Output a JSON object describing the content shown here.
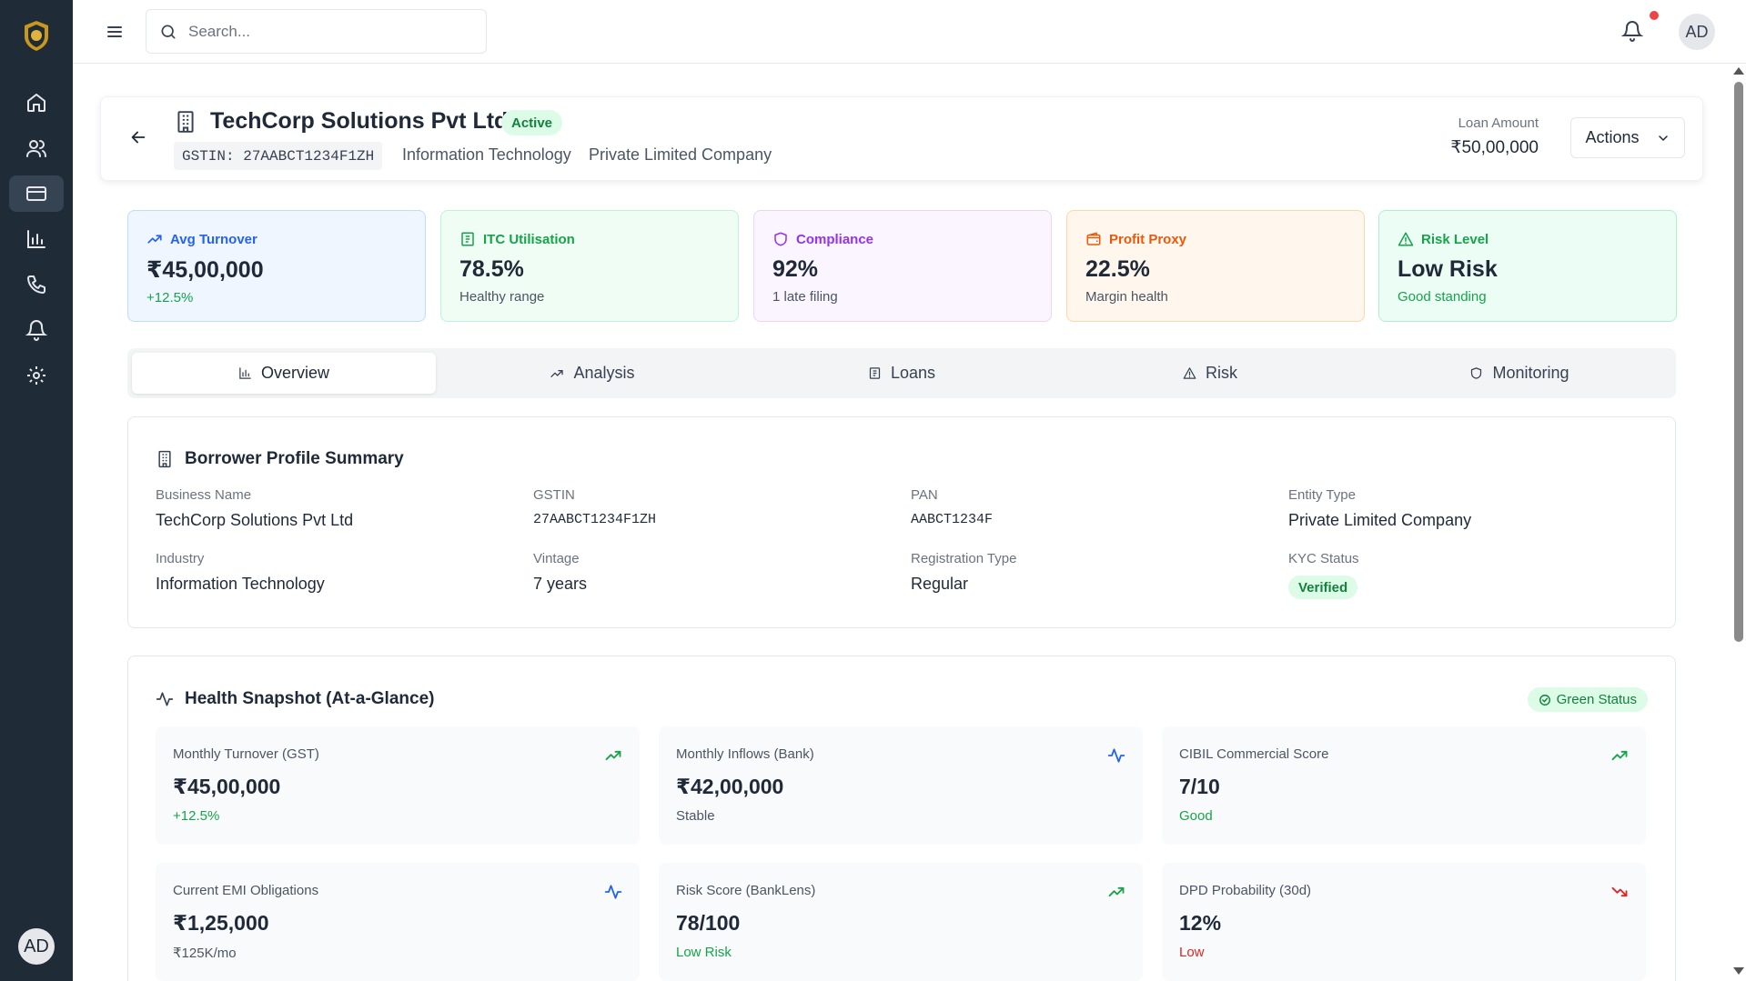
{
  "topbar": {
    "search_placeholder": "Search..."
  },
  "user": {
    "initials": "AD"
  },
  "sidebar": {
    "items": [
      {
        "icon": "home-icon"
      },
      {
        "icon": "users-icon"
      },
      {
        "icon": "credit-card-icon"
      },
      {
        "icon": "bar-chart-icon"
      },
      {
        "icon": "phone-icon"
      },
      {
        "icon": "bell-icon"
      },
      {
        "icon": "gear-icon"
      }
    ]
  },
  "header": {
    "title": "TechCorp Solutions Pvt Ltd",
    "status": "Active",
    "gstin": "GSTIN: 27AABCT1234F1ZH",
    "industry": "Information Technology",
    "entity": "Private Limited Company",
    "loan_label": "Loan Amount",
    "loan_value": "₹50,00,000",
    "actions_label": "Actions"
  },
  "kpis": [
    {
      "label": "Avg Turnover",
      "value": "₹45,00,000",
      "sub": "+12.5%",
      "color": "#2563eb"
    },
    {
      "label": "ITC Utilisation",
      "value": "78.5%",
      "sub": "Healthy range",
      "color": "#16a34a"
    },
    {
      "label": "Compliance",
      "value": "92%",
      "sub": "1 late filing",
      "color": "#9333ea"
    },
    {
      "label": "Profit Proxy",
      "value": "22.5%",
      "sub": "Margin health",
      "color": "#ea580c"
    },
    {
      "label": "Risk Level",
      "value": "Low Risk",
      "sub": "Good standing",
      "color": "#16a34a"
    }
  ],
  "tabs": [
    {
      "label": "Overview",
      "active": true
    },
    {
      "label": "Analysis"
    },
    {
      "label": "Loans"
    },
    {
      "label": "Risk"
    },
    {
      "label": "Monitoring"
    }
  ],
  "profile": {
    "title": "Borrower Profile Summary",
    "fields": {
      "business_name": {
        "label": "Business Name",
        "value": "TechCorp Solutions Pvt Ltd"
      },
      "gstin": {
        "label": "GSTIN",
        "value": "27AABCT1234F1ZH"
      },
      "pan": {
        "label": "PAN",
        "value": "AABCT1234F"
      },
      "entity_type": {
        "label": "Entity Type",
        "value": "Private Limited Company"
      },
      "industry": {
        "label": "Industry",
        "value": "Information Technology"
      },
      "vintage": {
        "label": "Vintage",
        "value": "7 years"
      },
      "registration_type": {
        "label": "Registration Type",
        "value": "Regular"
      },
      "kyc_status": {
        "label": "KYC Status",
        "value": "Verified"
      }
    }
  },
  "health": {
    "title": "Health Snapshot (At-a-Glance)",
    "status": "Green Status",
    "cards": [
      {
        "label": "Monthly Turnover (GST)",
        "value": "₹45,00,000",
        "sub": "+12.5%",
        "sub_color": "#16a34a",
        "trend": "up"
      },
      {
        "label": "Monthly Inflows (Bank)",
        "value": "₹42,00,000",
        "sub": "Stable",
        "sub_color": "#4b5563",
        "trend": "activity"
      },
      {
        "label": "CIBIL Commercial Score",
        "value": "7/10",
        "sub": "Good",
        "sub_color": "#16a34a",
        "trend": "up"
      },
      {
        "label": "Current EMI Obligations",
        "value": "₹1,25,000",
        "sub": "₹125K/mo",
        "sub_color": "#4b5563",
        "trend": "activity"
      },
      {
        "label": "Risk Score (BankLens)",
        "value": "78/100",
        "sub": "Low Risk",
        "sub_color": "#16a34a",
        "trend": "up"
      },
      {
        "label": "DPD Probability (30d)",
        "value": "12%",
        "sub": "Low",
        "sub_color": "#dc2626",
        "trend": "down"
      }
    ]
  }
}
